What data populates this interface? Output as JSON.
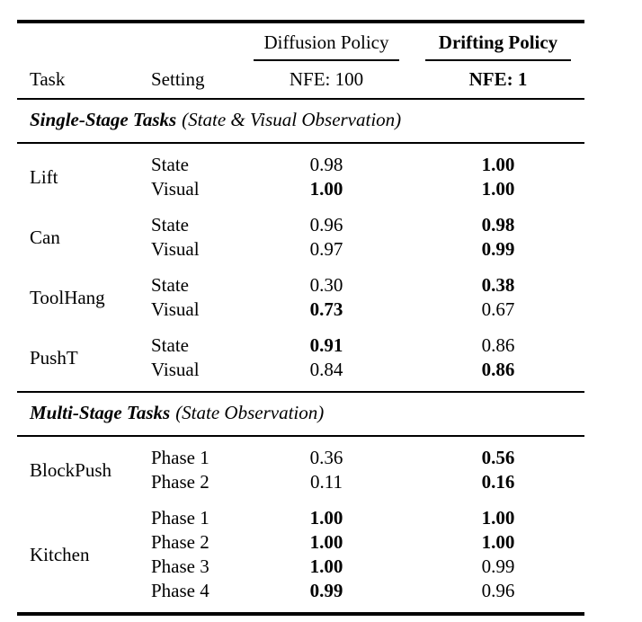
{
  "header": {
    "col_task": "Task",
    "col_setting": "Setting",
    "group_diffusion": {
      "title": "Diffusion Policy",
      "nfe": "NFE: 100"
    },
    "group_drifting": {
      "title": "Drifting Policy",
      "nfe": "NFE: 1"
    }
  },
  "colors": {
    "text": "#000000",
    "background": "#ffffff",
    "rule": "#000000"
  },
  "sections": [
    {
      "title": "Single-Stage Tasks",
      "subtitle": "(State & Visual Observation)",
      "groups": [
        {
          "task": "Lift",
          "rows": [
            {
              "setting": "State",
              "dp": {
                "v": "0.98",
                "b": false
              },
              "dr": {
                "v": "1.00",
                "b": true
              }
            },
            {
              "setting": "Visual",
              "dp": {
                "v": "1.00",
                "b": true
              },
              "dr": {
                "v": "1.00",
                "b": true
              }
            }
          ]
        },
        {
          "task": "Can",
          "rows": [
            {
              "setting": "State",
              "dp": {
                "v": "0.96",
                "b": false
              },
              "dr": {
                "v": "0.98",
                "b": true
              }
            },
            {
              "setting": "Visual",
              "dp": {
                "v": "0.97",
                "b": false
              },
              "dr": {
                "v": "0.99",
                "b": true
              }
            }
          ]
        },
        {
          "task": "ToolHang",
          "rows": [
            {
              "setting": "State",
              "dp": {
                "v": "0.30",
                "b": false
              },
              "dr": {
                "v": "0.38",
                "b": true
              }
            },
            {
              "setting": "Visual",
              "dp": {
                "v": "0.73",
                "b": true
              },
              "dr": {
                "v": "0.67",
                "b": false
              }
            }
          ]
        },
        {
          "task": "PushT",
          "rows": [
            {
              "setting": "State",
              "dp": {
                "v": "0.91",
                "b": true
              },
              "dr": {
                "v": "0.86",
                "b": false
              }
            },
            {
              "setting": "Visual",
              "dp": {
                "v": "0.84",
                "b": false
              },
              "dr": {
                "v": "0.86",
                "b": true
              }
            }
          ]
        }
      ]
    },
    {
      "title": "Multi-Stage Tasks",
      "subtitle": "(State Observation)",
      "groups": [
        {
          "task": "BlockPush",
          "rows": [
            {
              "setting": "Phase 1",
              "dp": {
                "v": "0.36",
                "b": false
              },
              "dr": {
                "v": "0.56",
                "b": true
              }
            },
            {
              "setting": "Phase 2",
              "dp": {
                "v": "0.11",
                "b": false
              },
              "dr": {
                "v": "0.16",
                "b": true
              }
            }
          ]
        },
        {
          "task": "Kitchen",
          "rows": [
            {
              "setting": "Phase 1",
              "dp": {
                "v": "1.00",
                "b": true
              },
              "dr": {
                "v": "1.00",
                "b": true
              }
            },
            {
              "setting": "Phase 2",
              "dp": {
                "v": "1.00",
                "b": true
              },
              "dr": {
                "v": "1.00",
                "b": true
              }
            },
            {
              "setting": "Phase 3",
              "dp": {
                "v": "1.00",
                "b": true
              },
              "dr": {
                "v": "0.99",
                "b": false
              }
            },
            {
              "setting": "Phase 4",
              "dp": {
                "v": "0.99",
                "b": true
              },
              "dr": {
                "v": "0.96",
                "b": false
              }
            }
          ]
        }
      ]
    }
  ]
}
